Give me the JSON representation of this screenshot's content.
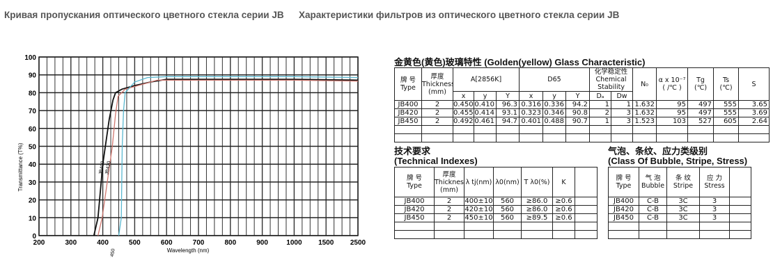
{
  "titles": {
    "left": "Кривая пропускания оптического цветного стекла серии JB",
    "right": "Характеристики фильтров из оптического цветного стекла серии JB"
  },
  "chart_data": {
    "type": "line",
    "xlabel": "Wavelength (nm)",
    "ylabel": "Transmittance (T%)",
    "x_ticks": [
      "200",
      "300",
      "400",
      "500",
      "600",
      "700",
      "800",
      "900",
      "1000",
      "1500",
      "2500"
    ],
    "x_tick_values": [
      200,
      300,
      400,
      500,
      600,
      700,
      800,
      900,
      1000,
      1500,
      2500
    ],
    "y_ticks": [
      "0",
      "10",
      "20",
      "30",
      "40",
      "50",
      "60",
      "70",
      "80",
      "90",
      "100"
    ],
    "ylim": [
      0,
      100
    ],
    "grid": true,
    "x_scale": "non-uniform (equal spacing per tick)",
    "series": [
      {
        "name": "JB400",
        "color": "#111111",
        "points": [
          [
            372,
            0
          ],
          [
            385,
            10
          ],
          [
            400,
            40
          ],
          [
            420,
            65
          ],
          [
            432,
            76
          ],
          [
            440,
            80
          ],
          [
            460,
            82
          ],
          [
            500,
            84
          ],
          [
            550,
            86
          ],
          [
            600,
            87.5
          ],
          [
            1000,
            87.5
          ],
          [
            2500,
            87
          ]
        ]
      },
      {
        "name": "JB420",
        "color": "#d07870",
        "points": [
          [
            385,
            0
          ],
          [
            398,
            10
          ],
          [
            410,
            25
          ],
          [
            430,
            50
          ],
          [
            440,
            68
          ],
          [
            448,
            78
          ],
          [
            470,
            82
          ],
          [
            530,
            85
          ],
          [
            570,
            87
          ],
          [
            1000,
            87
          ],
          [
            2500,
            86.5
          ]
        ]
      },
      {
        "name": "JB450",
        "color": "#5ab8d0",
        "points": [
          [
            450,
            0
          ],
          [
            458,
            10
          ],
          [
            461,
            50
          ],
          [
            465,
            70
          ],
          [
            470,
            80
          ],
          [
            500,
            86
          ],
          [
            540,
            88.5
          ],
          [
            600,
            89
          ],
          [
            1000,
            89
          ],
          [
            2500,
            88.5
          ]
        ]
      }
    ]
  },
  "golden": {
    "heading": "金黄色(黄色)玻璃特性 (Golden(yellow) Glass Characteristic)",
    "h": {
      "type_cn": "牌 号",
      "type": "Type",
      "thick_cn": "厚度",
      "thick": "Thickness",
      "mm": "(mm)",
      "a": "A[2856K]",
      "d65": "D65",
      "chem_cn": "化学稳定性",
      "chem": "Chemical",
      "stab": "Stability",
      "nd": "N₀",
      "alpha": "α x 10⁻⁷",
      "alpha_u": "( /℃ )",
      "tg": "Tg",
      "tg_u": "(℃)",
      "ts": "Ts",
      "ts_u": "(℃)",
      "s": "S",
      "x": "x",
      "y": "y",
      "Y": "Y",
      "da": "Dₐ",
      "dw": "Dw"
    },
    "rows": [
      [
        "JB400",
        "2",
        "0.450",
        "0.410",
        "96.3",
        "0.316",
        "0.336",
        "94.2",
        "1",
        "1",
        "1.632",
        "95",
        "497",
        "555",
        "3.65"
      ],
      [
        "JB420",
        "2",
        "0.455",
        "0.414",
        "93.1",
        "0.323",
        "0.346",
        "90.8",
        "2",
        "3",
        "1.632",
        "95",
        "497",
        "555",
        "3.69"
      ],
      [
        "JB450",
        "2",
        "0.492",
        "0.461",
        "94.7",
        "0.401",
        "0.488",
        "90.7",
        "1",
        "3",
        "1.523",
        "103",
        "527",
        "605",
        "2.64"
      ]
    ]
  },
  "tech": {
    "heading_cn": "技术要求",
    "heading": "(Technical Indexes)",
    "h": {
      "type_cn": "牌 号",
      "type": "Type",
      "thick_cn": "厚度",
      "thick": "Thickness",
      "mm": "(mm)",
      "ltj": "λ tj(nm)",
      "l0": "λ0(nm)",
      "tl0": "T λ0(%)",
      "k": "K"
    },
    "rows": [
      [
        "JB400",
        "2",
        "400±10",
        "560",
        "≥86.0",
        "≥0.6"
      ],
      [
        "JB420",
        "2",
        "420±10",
        "560",
        "≥86.0",
        "≥0.6"
      ],
      [
        "JB450",
        "2",
        "450±10",
        "560",
        "≥89.5",
        "≥0.6"
      ]
    ]
  },
  "bubble": {
    "heading_cn": "气泡、条纹、应力类级别",
    "heading": "(Class Of Bubble, Stripe, Stress)",
    "h": {
      "type_cn": "牌 号",
      "type": "Type",
      "bub_cn": "气 泡",
      "bub": "Bubble",
      "str_cn": "条 纹",
      "str": "Stripe",
      "stress_cn": "应 力",
      "stress": "Stress"
    },
    "rows": [
      [
        "JB400",
        "C-B",
        "3C",
        "3"
      ],
      [
        "JB420",
        "C-B",
        "3C",
        "3"
      ],
      [
        "JB450",
        "C-B",
        "3C",
        "3"
      ]
    ]
  }
}
